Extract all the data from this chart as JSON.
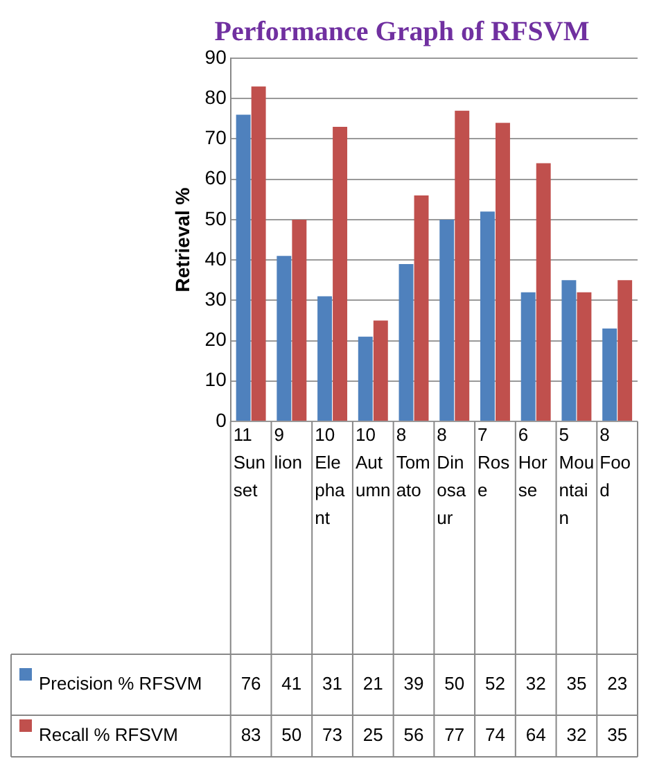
{
  "chart_data": {
    "type": "bar",
    "title": "Performance Graph of RFSVM",
    "ylabel": "Retrieval %",
    "categories": [
      "11 Sunset",
      "9 lion",
      "10 Elephant",
      "10 Autumn",
      "8 Tomato",
      "8 Dinosaur",
      "7 Rose",
      "6 Horse",
      "5 Mountain",
      "8 Food"
    ],
    "series": [
      {
        "name": "Precision % RFSVM",
        "color": "#4f81bd",
        "values": [
          76,
          41,
          31,
          21,
          39,
          50,
          52,
          32,
          35,
          23
        ]
      },
      {
        "name": "Recall % RFSVM",
        "color": "#c0504d",
        "values": [
          83,
          50,
          73,
          25,
          56,
          77,
          74,
          64,
          32,
          35
        ]
      }
    ],
    "ylim": [
      0,
      90
    ],
    "yticks": [
      0,
      10,
      20,
      30,
      40,
      50,
      60,
      70,
      80,
      90
    ],
    "grid": "y",
    "legend": "bottom",
    "data_labels": true
  }
}
